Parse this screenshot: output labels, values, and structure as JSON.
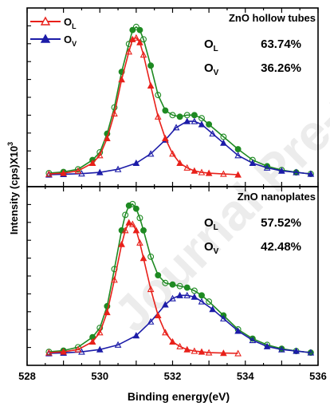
{
  "chart_data": [
    {
      "type": "line",
      "title": "ZnO hollow tubes",
      "xlim": [
        528,
        536
      ],
      "ylim": [
        0,
        100
      ],
      "annotations": [
        {
          "label_main": "O",
          "label_sub": "L",
          "value": "63.74%"
        },
        {
          "label_main": "O",
          "label_sub": "V",
          "value": "36.26%"
        }
      ],
      "series": [
        {
          "name_main": "O",
          "name_sub": "L",
          "color": "#e8201a",
          "x": [
            528.6,
            529.0,
            529.4,
            529.8,
            530.0,
            530.2,
            530.4,
            530.6,
            530.8,
            530.9,
            531.0,
            531.1,
            531.2,
            531.4,
            531.6,
            531.8,
            532.0,
            532.2,
            532.4,
            532.6,
            532.8,
            533.0,
            533.4,
            533.8
          ],
          "y": [
            1,
            1.5,
            3,
            8,
            13,
            24,
            40,
            62,
            80,
            88,
            89,
            86,
            78,
            58,
            38,
            24,
            14,
            8,
            5,
            3,
            2,
            1.5,
            1,
            0.5
          ]
        },
        {
          "name_main": "O",
          "name_sub": "V",
          "color": "#1c1ca8",
          "x": [
            528.6,
            529.0,
            529.5,
            530.0,
            530.5,
            531.0,
            531.4,
            531.8,
            532.1,
            532.4,
            532.6,
            532.8,
            533.1,
            533.4,
            533.8,
            534.2,
            534.6,
            535.0,
            535.4,
            535.8
          ],
          "y": [
            0.5,
            0.8,
            1.2,
            2,
            4,
            8,
            14,
            23,
            31,
            35,
            35,
            33,
            27,
            21,
            13,
            8,
            5,
            3,
            2,
            1
          ]
        },
        {
          "name": "",
          "color": "#1e8a22",
          "x": [
            528.6,
            529.0,
            529.4,
            529.8,
            530.0,
            530.2,
            530.4,
            530.6,
            530.8,
            530.9,
            531.0,
            531.1,
            531.2,
            531.4,
            531.6,
            531.8,
            532.0,
            532.2,
            532.4,
            532.6,
            532.8,
            533.0,
            533.4,
            533.8,
            534.2,
            534.6,
            535.0,
            535.4,
            535.8
          ],
          "y": [
            1.5,
            2.3,
            4,
            10,
            15,
            27,
            44,
            67,
            85,
            94,
            96,
            94,
            88,
            71,
            52,
            42,
            39,
            38,
            39,
            39,
            37,
            33,
            25,
            17,
            10,
            6,
            3.5,
            2,
            1
          ]
        }
      ]
    },
    {
      "type": "line",
      "title": "ZnO nanoplates",
      "xlim": [
        528,
        536
      ],
      "ylim": [
        0,
        100
      ],
      "annotations": [
        {
          "label_main": "O",
          "label_sub": "L",
          "value": "57.52%"
        },
        {
          "label_main": "O",
          "label_sub": "V",
          "value": "42.48%"
        }
      ],
      "series": [
        {
          "name": "",
          "color": "#e8201a",
          "x": [
            528.6,
            529.0,
            529.4,
            529.8,
            530.0,
            530.2,
            530.4,
            530.6,
            530.7,
            530.8,
            530.9,
            531.0,
            531.1,
            531.2,
            531.4,
            531.6,
            531.8,
            532.0,
            532.2,
            532.4,
            532.6,
            532.8,
            533.0,
            533.4,
            533.8
          ],
          "y": [
            1,
            1.5,
            3,
            8,
            14,
            27,
            48,
            71,
            80,
            85,
            84,
            80,
            72,
            62,
            42,
            25,
            14,
            8,
            5,
            3,
            2,
            1.5,
            1,
            0.7,
            0.5
          ]
        },
        {
          "name": "",
          "color": "#1c1ca8",
          "x": [
            528.6,
            529.0,
            529.5,
            530.0,
            530.5,
            531.0,
            531.4,
            531.8,
            532.0,
            532.2,
            532.4,
            532.6,
            532.8,
            533.1,
            533.4,
            533.8,
            534.2,
            534.6,
            535.0,
            535.4,
            535.8
          ],
          "y": [
            0.5,
            0.8,
            1.5,
            3,
            6,
            12,
            21,
            32,
            36,
            38,
            38,
            37,
            34,
            29,
            23,
            15,
            9,
            5,
            3,
            2,
            1
          ]
        },
        {
          "name": "",
          "color": "#1e8a22",
          "x": [
            528.6,
            529.0,
            529.4,
            529.8,
            530.0,
            530.2,
            530.4,
            530.6,
            530.7,
            530.8,
            530.9,
            531.0,
            531.1,
            531.2,
            531.4,
            531.6,
            531.8,
            532.0,
            532.2,
            532.4,
            532.6,
            532.8,
            533.0,
            533.4,
            533.8,
            534.2,
            534.6,
            535.0,
            535.4,
            535.8
          ],
          "y": [
            1.5,
            2.3,
            4.5,
            11,
            17,
            31,
            55,
            80,
            90,
            96,
            97,
            94,
            88,
            80,
            63,
            51,
            46,
            45,
            44,
            43,
            41,
            38,
            34,
            25,
            16,
            10,
            6,
            3.5,
            2,
            1
          ]
        }
      ]
    }
  ],
  "xlabel": "Binding energy(eV)",
  "ylabel": "Intensity (cps)X10",
  "ylabel_sup": "3",
  "x_ticks": [
    "528",
    "530",
    "532",
    "534",
    "536"
  ],
  "watermark": "Journal Pre-proof"
}
